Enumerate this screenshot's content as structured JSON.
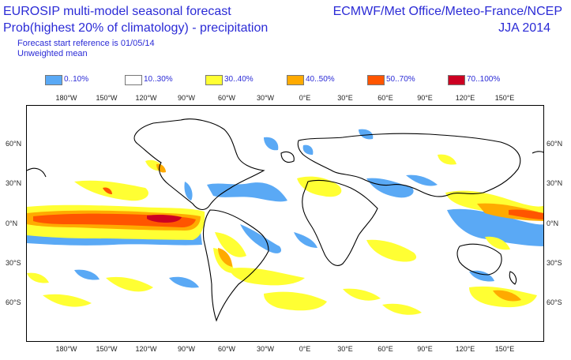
{
  "header": {
    "title_line1": "EUROSIP multi-model seasonal forecast",
    "title_line2": "Prob(highest 20% of climatology) - precipitation",
    "start_reference": "Forecast start reference is 01/05/14",
    "mean_type": "Unweighted mean",
    "centres": "ECMWF/Met Office/Meteo-France/NCEP",
    "season": "JJA 2014"
  },
  "legend": [
    {
      "label": "0..10%",
      "color": "#5aa9f5"
    },
    {
      "label": "10..30%",
      "color": "#ffffff"
    },
    {
      "label": "30..40%",
      "color": "#ffff33"
    },
    {
      "label": "40..50%",
      "color": "#ffaa00"
    },
    {
      "label": "50..70%",
      "color": "#ff5500"
    },
    {
      "label": "70..100%",
      "color": "#cc0022"
    }
  ],
  "axes": {
    "longitude_labels": [
      "180°W",
      "150°W",
      "120°W",
      "90°W",
      "60°W",
      "30°W",
      "0°E",
      "30°E",
      "60°E",
      "90°E",
      "120°E",
      "150°E"
    ],
    "latitude_labels": [
      "60°N",
      "30°N",
      "0°N",
      "30°S",
      "60°S"
    ]
  },
  "colors": {
    "text": "#2b2bd6",
    "coast": "#000000"
  }
}
